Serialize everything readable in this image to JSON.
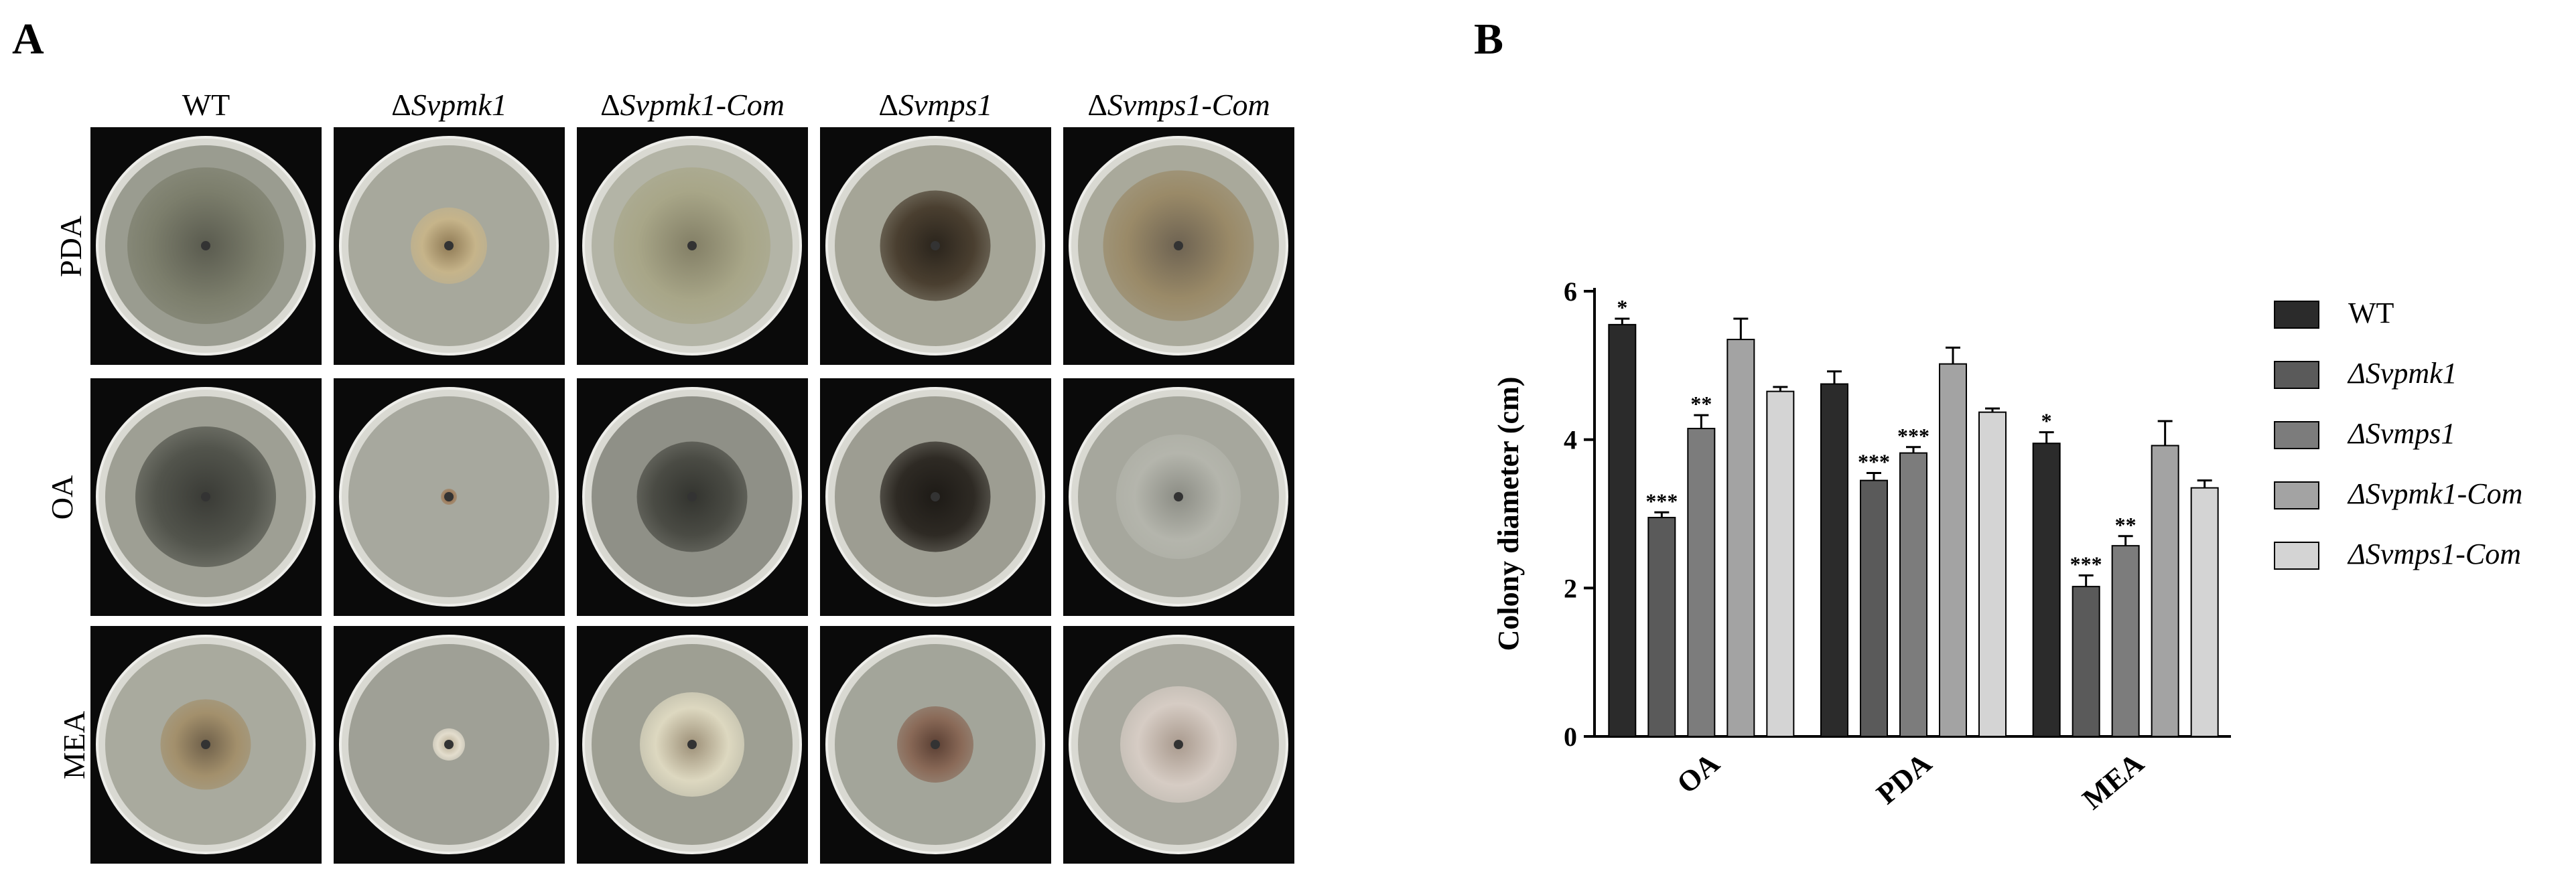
{
  "panel_a": {
    "letter": "A",
    "columns": [
      {
        "delta": "",
        "strain": "WT"
      },
      {
        "delta": "Δ",
        "strain": "Svpmk1"
      },
      {
        "delta": "Δ",
        "strain": "Svpmk1-Com"
      },
      {
        "delta": "Δ",
        "strain": "Svmps1"
      },
      {
        "delta": "Δ",
        "strain": "Svmps1-Com"
      }
    ],
    "rows": [
      "PDA",
      "OA",
      "MEA"
    ]
  },
  "panel_b": {
    "letter": "B"
  },
  "chart_data": {
    "type": "bar",
    "categories": [
      "OA",
      "PDA",
      "MEA"
    ],
    "ylabel": "Colony diameter (cm)",
    "ylim": [
      0,
      6
    ],
    "yticks": [
      0,
      2,
      4,
      6
    ],
    "legend_position": "right",
    "series": [
      {
        "name": "WT",
        "color": "#2b2b2b",
        "values": [
          5.55,
          4.75,
          3.95
        ],
        "errors": [
          0.08,
          0.17,
          0.15
        ],
        "labels": [
          "*",
          "",
          "*"
        ]
      },
      {
        "name": "ΔSvpmk1",
        "color": "#5a5a5a",
        "values": [
          2.95,
          3.45,
          2.02
        ],
        "errors": [
          0.07,
          0.1,
          0.15
        ],
        "labels": [
          "***",
          "***",
          "***"
        ]
      },
      {
        "name": "ΔSvmps1",
        "color": "#7c7c7c",
        "values": [
          4.15,
          3.82,
          2.57
        ],
        "errors": [
          0.18,
          0.08,
          0.13
        ],
        "labels": [
          "**",
          "***",
          "**"
        ]
      },
      {
        "name": "ΔSvpmk1-Com",
        "color": "#a3a3a3",
        "values": [
          5.35,
          5.02,
          3.92
        ],
        "errors": [
          0.28,
          0.22,
          0.33
        ],
        "labels": [
          "",
          "",
          ""
        ]
      },
      {
        "name": "ΔSvmps1-Com",
        "color": "#d4d4d4",
        "values": [
          4.65,
          4.37,
          3.35
        ],
        "errors": [
          0.06,
          0.05,
          0.1
        ],
        "labels": [
          "",
          "",
          ""
        ]
      }
    ]
  }
}
